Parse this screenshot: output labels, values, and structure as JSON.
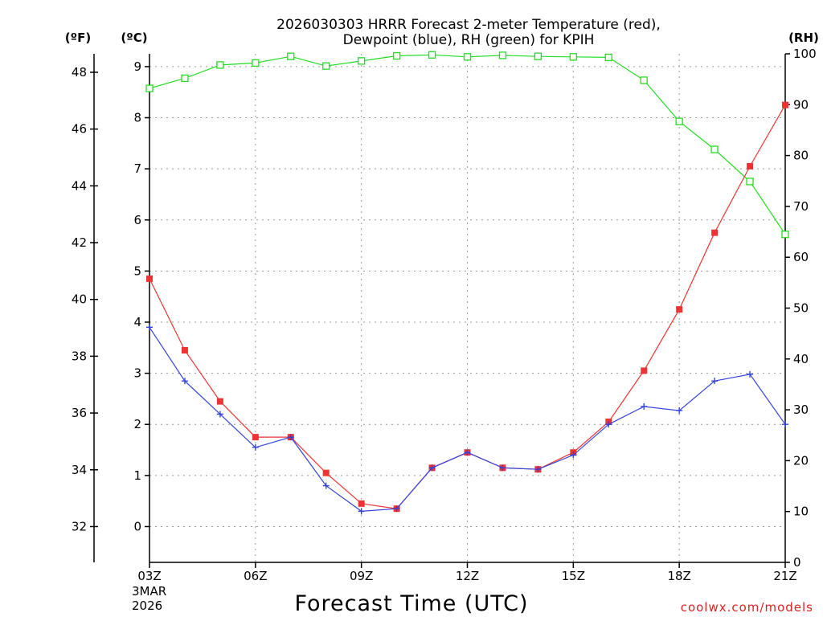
{
  "chart_data": {
    "type": "line",
    "title_line1": "2026030303 HRRR Forecast 2-meter Temperature (red),",
    "title_line2": "Dewpoint (blue), RH (green) for KPIH",
    "unit_labels": {
      "fahrenheit": "(ºF)",
      "celsius": "(ºC)",
      "rh": "(RH)"
    },
    "xlabel": "Forecast Time (UTC)",
    "credit": "coolwx.com/models",
    "x_ticks": [
      "03Z",
      "06Z",
      "09Z",
      "12Z",
      "15Z",
      "18Z",
      "21Z"
    ],
    "date_label": [
      "3MAR",
      "2026"
    ],
    "x_range": [
      0,
      18
    ],
    "celsius_axis": {
      "range": [
        -0.7,
        9.25
      ],
      "ticks": [
        0,
        1,
        2,
        3,
        4,
        5,
        6,
        7,
        8,
        9
      ]
    },
    "fahrenheit_axis": {
      "ticks": [
        32,
        34,
        36,
        38,
        40,
        42,
        44,
        46,
        48
      ]
    },
    "rh_axis": {
      "range": [
        0,
        100
      ],
      "ticks": [
        0,
        10,
        20,
        30,
        40,
        50,
        60,
        70,
        80,
        90,
        100
      ]
    },
    "colors": {
      "temperature": "#ee3333",
      "dewpoint": "#3344dd",
      "rh": "#22dd22"
    },
    "series": [
      {
        "name": "Temperature",
        "axis": "C",
        "marker": "filled-square",
        "values": [
          4.85,
          3.45,
          2.45,
          1.75,
          1.75,
          1.05,
          0.45,
          0.35,
          1.15,
          1.45,
          1.15,
          1.12,
          1.45,
          2.05,
          3.05,
          4.25,
          5.75,
          7.05,
          8.25
        ]
      },
      {
        "name": "Dewpoint",
        "axis": "C",
        "marker": "plus",
        "values": [
          3.9,
          2.85,
          2.2,
          1.55,
          1.75,
          0.8,
          0.3,
          0.35,
          1.15,
          1.45,
          1.15,
          1.12,
          1.4,
          2.0,
          2.35,
          2.27,
          2.85,
          2.98,
          2.0
        ]
      },
      {
        "name": "RH",
        "axis": "RH",
        "marker": "open-square",
        "values": [
          93.2,
          95.2,
          97.8,
          98.2,
          99.5,
          97.6,
          98.6,
          99.6,
          99.8,
          99.4,
          99.7,
          99.5,
          99.4,
          99.3,
          94.8,
          86.7,
          81.2,
          74.9,
          64.5
        ]
      }
    ]
  }
}
